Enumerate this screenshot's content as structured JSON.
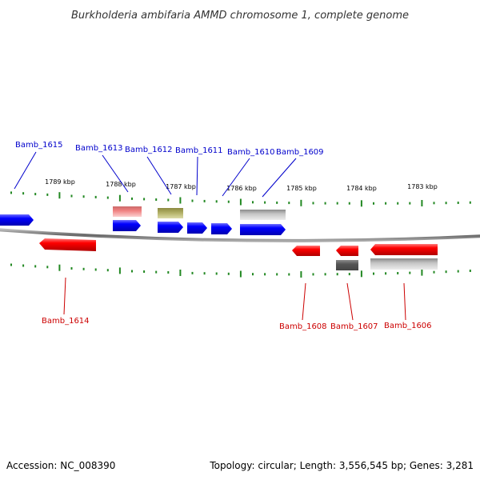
{
  "title": "Burkholderia ambifaria AMMD chromosome 1, complete genome",
  "footer": {
    "accession": "Accession: NC_008390",
    "summary": "Topology: circular; Length: 3,556,545 bp; Genes: 3,281"
  },
  "colors": {
    "plus_strand_label": "#0000cc",
    "minus_strand_label": "#cc0000",
    "plus_gene": "#0000ff",
    "minus_gene": "#ff0000",
    "tick": "#228822",
    "backbone": "#888888"
  },
  "kbp_ticks": [
    "1789 kbp",
    "1788 kbp",
    "1787 kbp",
    "1786 kbp",
    "1785 kbp",
    "1784 kbp",
    "1783 kbp"
  ],
  "plus_genes": [
    "Bamb_1615",
    "Bamb_1613",
    "Bamb_1612",
    "Bamb_1611",
    "Bamb_1610",
    "Bamb_1609"
  ],
  "minus_genes": [
    "Bamb_1614",
    "Bamb_1608",
    "Bamb_1607",
    "Bamb_1606"
  ]
}
